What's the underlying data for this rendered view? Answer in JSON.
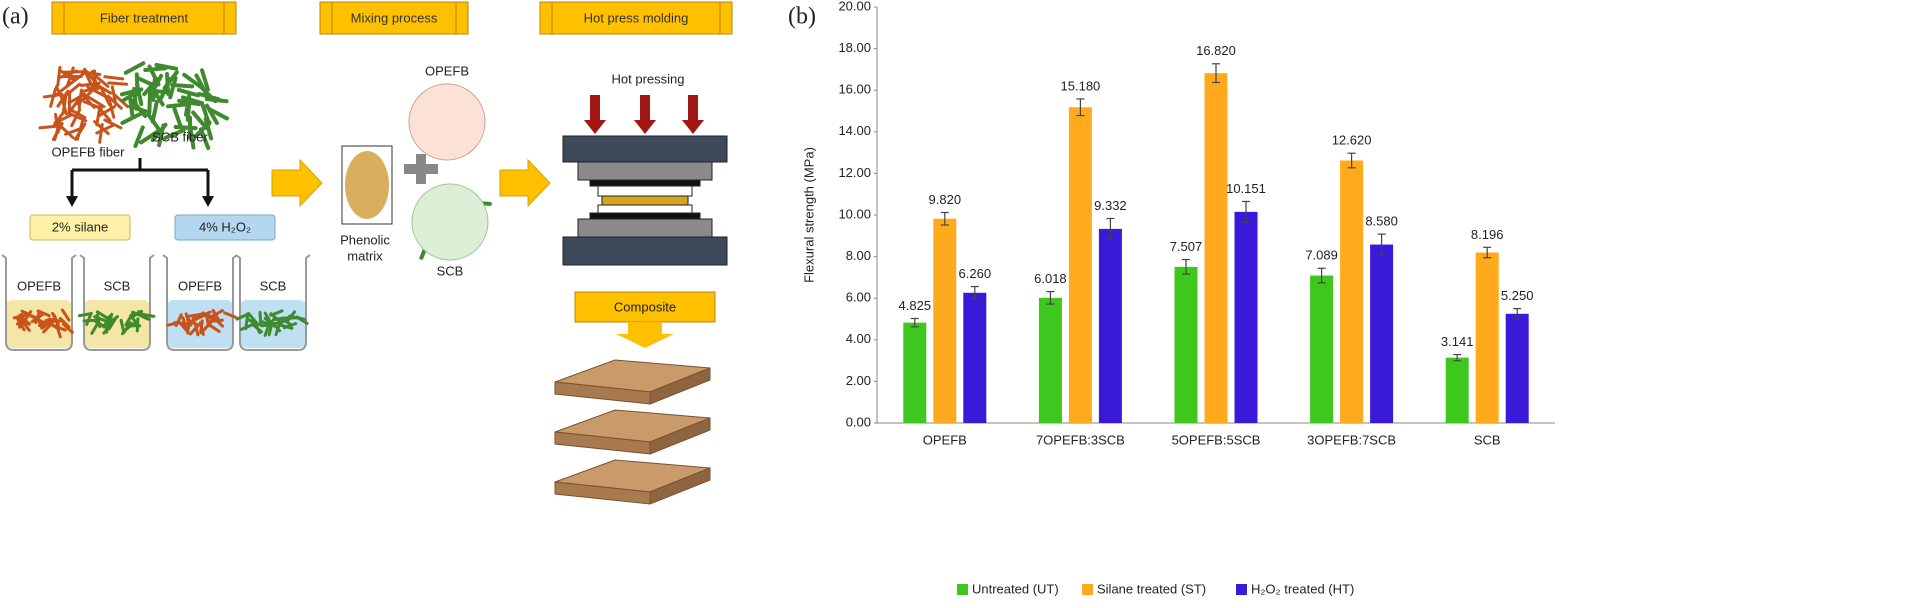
{
  "diagram": {
    "panel_label": "(a)",
    "steps": [
      "Fiber treatment",
      "Mixing process",
      "Hot press molding"
    ],
    "fiber_labels": [
      "OPEFB fiber",
      "SCB fiber"
    ],
    "treatments": [
      "2% silane",
      "4% H₂O₂"
    ],
    "beaker_labels": [
      "OPEFB",
      "SCB",
      "OPEFB",
      "SCB"
    ],
    "matrix_label": [
      "Phenolic",
      "matrix"
    ],
    "mix_labels": [
      "OPEFB",
      "SCB"
    ],
    "press_label": "Hot pressing",
    "product_label": "Composite"
  },
  "chart_data": {
    "type": "bar",
    "panel_label": "(b)",
    "y_label": "Flexural strength (MPa)",
    "categories": [
      "OPEFB",
      "7OPEFB:3SCB",
      "5OPEFB:5SCB",
      "3OPEFB:7SCB",
      "SCB"
    ],
    "series": [
      {
        "name": "Untreated (UT)",
        "color": "#3ec81e",
        "values": [
          4.825,
          6.018,
          7.507,
          7.089,
          3.141
        ],
        "value_labels": [
          "4.825",
          "6.018",
          "7.507",
          "7.089",
          "3.141"
        ],
        "errors": [
          0.2,
          0.3,
          0.35,
          0.35,
          0.15
        ]
      },
      {
        "name": "Silane treated (ST)",
        "color": "#ffa91c",
        "values": [
          9.82,
          15.18,
          16.82,
          12.62,
          8.196
        ],
        "value_labels": [
          "9.820",
          "15.180",
          "16.820",
          "12.620",
          "8.196"
        ],
        "errors": [
          0.3,
          0.4,
          0.45,
          0.35,
          0.25
        ]
      },
      {
        "name": "H₂O₂ treated (HT)",
        "color": "#3a19d8",
        "values": [
          6.26,
          9.332,
          10.151,
          8.58,
          5.25
        ],
        "value_labels": [
          "6.260",
          "9.332",
          "10.151",
          "8.580",
          "5.250"
        ],
        "errors": [
          0.3,
          0.5,
          0.5,
          0.5,
          0.25
        ]
      }
    ],
    "ylim": [
      0,
      20
    ],
    "yticks": [
      {
        "value": 0,
        "label": "0.00"
      },
      {
        "value": 2,
        "label": "2.00"
      },
      {
        "value": 4,
        "label": "4.00"
      },
      {
        "value": 6,
        "label": "6.00"
      },
      {
        "value": 8,
        "label": "8.00"
      },
      {
        "value": 10,
        "label": "10.00"
      },
      {
        "value": 12,
        "label": "12.00"
      },
      {
        "value": 14,
        "label": "14.00"
      },
      {
        "value": 16,
        "label": "16.00"
      },
      {
        "value": 18,
        "label": "18.00"
      },
      {
        "value": 20,
        "label": "20.00"
      }
    ],
    "legend": "bottom"
  }
}
